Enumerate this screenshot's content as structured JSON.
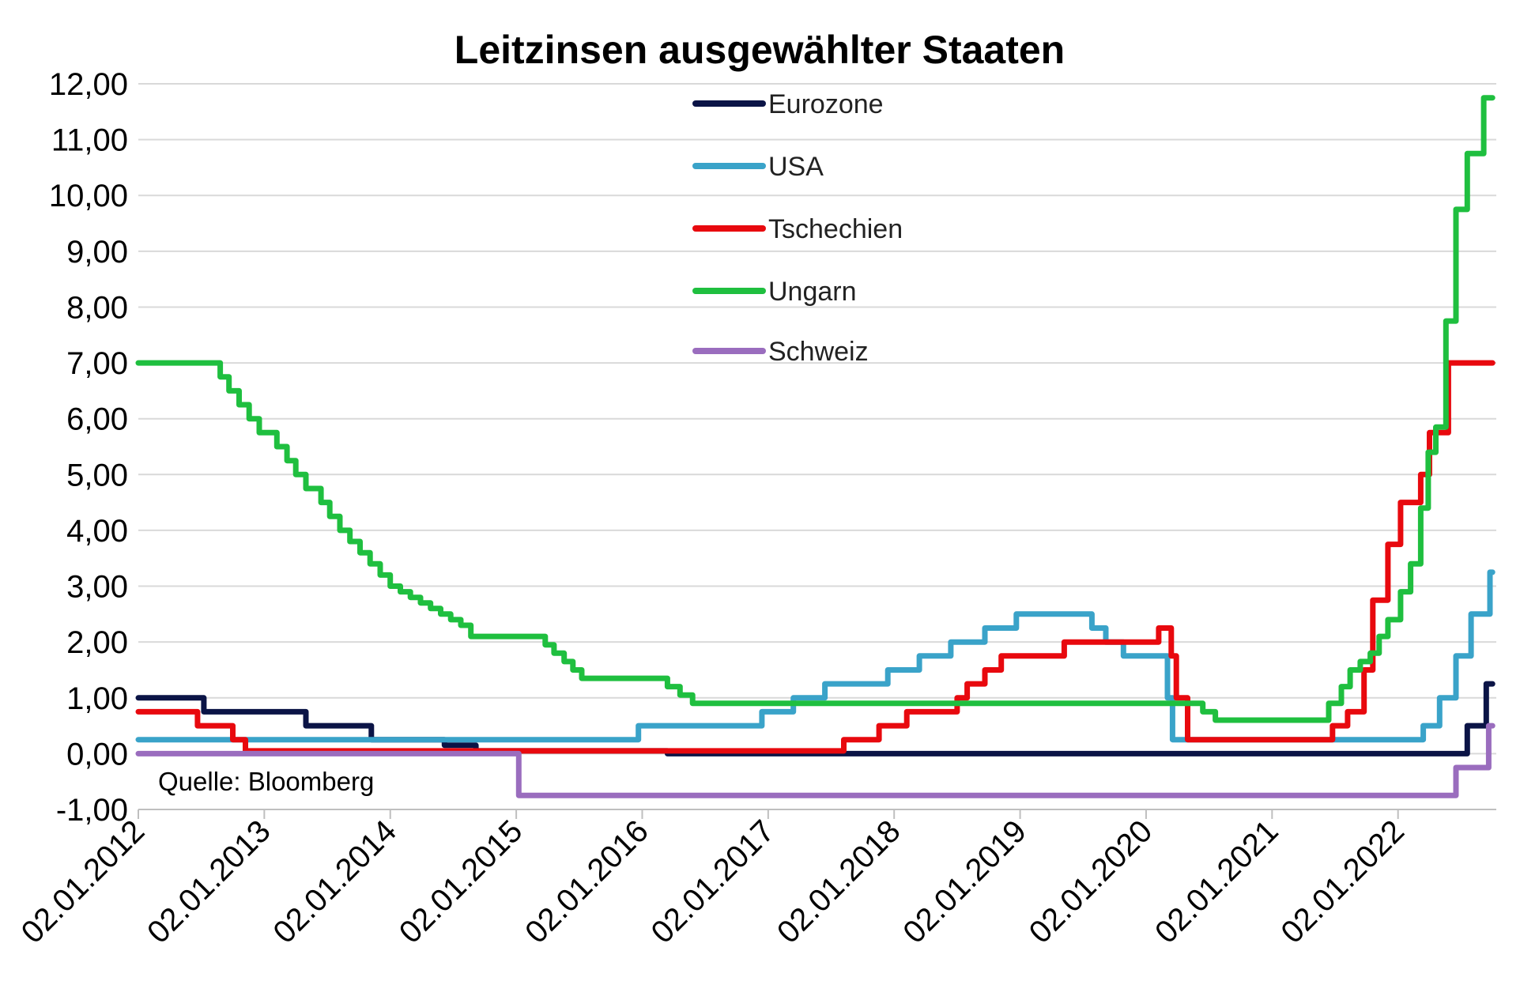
{
  "chart_data": {
    "type": "line",
    "title": "Leitzinsen ausgewählter Staaten",
    "source": "Quelle: Bloomberg",
    "ylim": [
      -1,
      12
    ],
    "yticks": [
      "12,00",
      "11,00",
      "10,00",
      "9,00",
      "8,00",
      "7,00",
      "6,00",
      "5,00",
      "4,00",
      "3,00",
      "2,00",
      "1,00",
      "0,00",
      "-1,00"
    ],
    "xlim": [
      2012.0,
      2022.78
    ],
    "xticks": [
      "02.01.2012",
      "02.01.2013",
      "02.01.2014",
      "02.01.2015",
      "02.01.2016",
      "02.01.2017",
      "02.01.2018",
      "02.01.2019",
      "02.01.2020",
      "02.01.2021",
      "02.01.2022"
    ],
    "grid": true,
    "legend_position": "top-center",
    "series": [
      {
        "name": "Eurozone",
        "color": "#0b1446",
        "step": true,
        "points": [
          [
            2012.0,
            1.0
          ],
          [
            2012.52,
            0.75
          ],
          [
            2013.33,
            0.5
          ],
          [
            2013.85,
            0.25
          ],
          [
            2014.43,
            0.15
          ],
          [
            2014.68,
            0.05
          ],
          [
            2016.2,
            0.0
          ],
          [
            2022.55,
            0.5
          ],
          [
            2022.7,
            1.25
          ],
          [
            2022.75,
            1.25
          ]
        ]
      },
      {
        "name": "USA",
        "color": "#3aa3c9",
        "step": true,
        "points": [
          [
            2012.0,
            0.25
          ],
          [
            2015.97,
            0.5
          ],
          [
            2016.95,
            0.75
          ],
          [
            2017.2,
            1.0
          ],
          [
            2017.45,
            1.25
          ],
          [
            2017.95,
            1.5
          ],
          [
            2018.2,
            1.75
          ],
          [
            2018.45,
            2.0
          ],
          [
            2018.72,
            2.25
          ],
          [
            2018.97,
            2.5
          ],
          [
            2019.57,
            2.25
          ],
          [
            2019.68,
            2.0
          ],
          [
            2019.82,
            1.75
          ],
          [
            2020.17,
            1.0
          ],
          [
            2020.21,
            0.25
          ],
          [
            2022.2,
            0.5
          ],
          [
            2022.33,
            1.0
          ],
          [
            2022.46,
            1.75
          ],
          [
            2022.58,
            2.5
          ],
          [
            2022.73,
            3.25
          ],
          [
            2022.75,
            3.25
          ]
        ]
      },
      {
        "name": "Tschechien",
        "color": "#e8090e",
        "step": true,
        "points": [
          [
            2012.0,
            0.75
          ],
          [
            2012.47,
            0.5
          ],
          [
            2012.75,
            0.25
          ],
          [
            2012.85,
            0.05
          ],
          [
            2017.6,
            0.25
          ],
          [
            2017.88,
            0.5
          ],
          [
            2018.1,
            0.75
          ],
          [
            2018.5,
            1.0
          ],
          [
            2018.58,
            1.25
          ],
          [
            2018.72,
            1.5
          ],
          [
            2018.85,
            1.75
          ],
          [
            2019.35,
            2.0
          ],
          [
            2020.1,
            2.25
          ],
          [
            2020.2,
            1.75
          ],
          [
            2020.24,
            1.0
          ],
          [
            2020.33,
            0.25
          ],
          [
            2021.48,
            0.5
          ],
          [
            2021.6,
            0.75
          ],
          [
            2021.73,
            1.5
          ],
          [
            2021.8,
            2.75
          ],
          [
            2021.92,
            3.75
          ],
          [
            2022.02,
            4.5
          ],
          [
            2022.18,
            5.0
          ],
          [
            2022.25,
            5.75
          ],
          [
            2022.4,
            7.0
          ],
          [
            2022.75,
            7.0
          ]
        ]
      },
      {
        "name": "Ungarn",
        "color": "#1fbf3f",
        "step": true,
        "points": [
          [
            2012.0,
            7.0
          ],
          [
            2012.65,
            6.75
          ],
          [
            2012.72,
            6.5
          ],
          [
            2012.8,
            6.25
          ],
          [
            2012.88,
            6.0
          ],
          [
            2012.96,
            5.75
          ],
          [
            2013.1,
            5.5
          ],
          [
            2013.18,
            5.25
          ],
          [
            2013.25,
            5.0
          ],
          [
            2013.33,
            4.75
          ],
          [
            2013.45,
            4.5
          ],
          [
            2013.52,
            4.25
          ],
          [
            2013.6,
            4.0
          ],
          [
            2013.68,
            3.8
          ],
          [
            2013.76,
            3.6
          ],
          [
            2013.84,
            3.4
          ],
          [
            2013.92,
            3.2
          ],
          [
            2014.0,
            3.0
          ],
          [
            2014.08,
            2.9
          ],
          [
            2014.16,
            2.8
          ],
          [
            2014.24,
            2.7
          ],
          [
            2014.32,
            2.6
          ],
          [
            2014.4,
            2.5
          ],
          [
            2014.48,
            2.4
          ],
          [
            2014.56,
            2.3
          ],
          [
            2014.64,
            2.1
          ],
          [
            2015.23,
            1.95
          ],
          [
            2015.3,
            1.8
          ],
          [
            2015.38,
            1.65
          ],
          [
            2015.45,
            1.5
          ],
          [
            2015.52,
            1.35
          ],
          [
            2016.2,
            1.2
          ],
          [
            2016.3,
            1.05
          ],
          [
            2016.4,
            0.9
          ],
          [
            2020.45,
            0.75
          ],
          [
            2020.55,
            0.6
          ],
          [
            2021.45,
            0.9
          ],
          [
            2021.55,
            1.2
          ],
          [
            2021.62,
            1.5
          ],
          [
            2021.7,
            1.65
          ],
          [
            2021.78,
            1.8
          ],
          [
            2021.85,
            2.1
          ],
          [
            2021.92,
            2.4
          ],
          [
            2022.02,
            2.9
          ],
          [
            2022.1,
            3.4
          ],
          [
            2022.18,
            4.4
          ],
          [
            2022.24,
            5.4
          ],
          [
            2022.3,
            5.85
          ],
          [
            2022.38,
            7.75
          ],
          [
            2022.46,
            9.75
          ],
          [
            2022.55,
            10.75
          ],
          [
            2022.68,
            11.75
          ],
          [
            2022.75,
            11.75
          ]
        ]
      },
      {
        "name": "Schweiz",
        "color": "#9a6dbe",
        "step": true,
        "points": [
          [
            2012.0,
            0.0
          ],
          [
            2015.02,
            -0.75
          ],
          [
            2022.46,
            -0.25
          ],
          [
            2022.72,
            0.5
          ],
          [
            2022.75,
            0.5
          ]
        ]
      }
    ]
  }
}
